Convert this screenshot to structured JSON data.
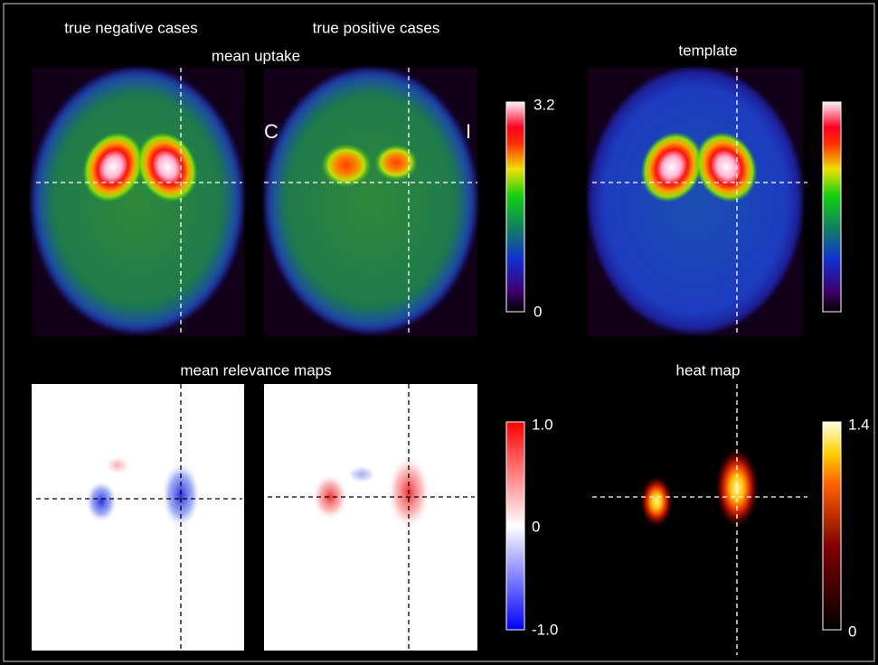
{
  "top_row": {
    "title_left": "true negative cases",
    "title_middle": "true positive cases",
    "subtitle": "mean uptake",
    "title_right": "template",
    "side_left": "C",
    "side_right": "I",
    "colorbar": {
      "max": "3.2",
      "min": "0"
    }
  },
  "bottom_row": {
    "title": "mean relevance maps",
    "title_right": "heat map",
    "relevance_colorbar": {
      "max": "1.0",
      "mid": "0",
      "min": "-1.0"
    },
    "heat_colorbar": {
      "max": "1.4",
      "min": "0"
    }
  }
}
